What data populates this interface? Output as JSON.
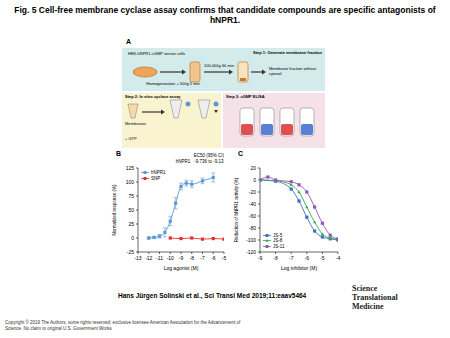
{
  "title": "Fig. 5 Cell-free membrane cyclase assay confirms that candidate compounds are specific antagonists of hNPR1.",
  "panel_a": {
    "label": "A",
    "step1": {
      "title": "Step 1: Generate membrane fraction",
      "cells": "HEK-hNPR1-cGMP sensor cells",
      "spin1": "Homogenization + 500g 5 min",
      "spin2": "100,000g 60 min",
      "product": "Membrane fraction without cytosol"
    },
    "step2": {
      "title": "Step 2: In vitro cyclase assay",
      "membranes": "Membranes",
      "gtp": "+ GTP"
    },
    "step3": {
      "title": "Step 3: cGMP ELISA"
    }
  },
  "chart_data": [
    {
      "panel": "B",
      "type": "line",
      "x_label": "Log agonist (M)",
      "y_label": "Normalized response (%)",
      "xlim": [
        -13,
        -5
      ],
      "xticks": [
        -13,
        -12,
        -11,
        -10,
        -9,
        -8,
        -7,
        -6,
        -5
      ],
      "ylim": [
        -25,
        125
      ],
      "yticks": [
        -25,
        0,
        25,
        50,
        75,
        100,
        125
      ],
      "grid": false,
      "legend": "upper left",
      "annotation_title": "EC50 (95% CI)",
      "annotation_rows": [
        [
          "hNPR1",
          "-9.736 to -9.13"
        ]
      ],
      "series": [
        {
          "name": "hNPR1",
          "color": "#5b9bd5",
          "marker": "square",
          "line_style": "solid",
          "x": [
            -12,
            -11.5,
            -11,
            -10.5,
            -10,
            -9.5,
            -9,
            -8.5,
            -8,
            -7,
            -6
          ],
          "values": [
            0,
            1,
            3,
            10,
            30,
            62,
            92,
            98,
            96,
            102,
            108
          ],
          "errors": [
            2,
            2,
            3,
            8,
            8,
            10,
            6,
            5,
            6,
            5,
            8
          ]
        },
        {
          "name": "SNP",
          "color": "#e0322d",
          "marker": "square",
          "line_style": "solid",
          "x": [
            -10,
            -9,
            -8,
            -7,
            -6,
            -5
          ],
          "values": [
            0,
            -1,
            0,
            -2,
            -1,
            -2
          ]
        }
      ]
    },
    {
      "panel": "C",
      "type": "line",
      "x_label": "Log inhibitor (M)",
      "y_label": "Reduction of hNPR1 activity (%)",
      "xlim": [
        -9,
        -4
      ],
      "xticks": [
        -9,
        -8,
        -7,
        -6,
        -5,
        -4
      ],
      "ylim": [
        -120,
        20
      ],
      "yticks": [
        20,
        0,
        -20,
        -40,
        -60,
        -80,
        -100,
        -120
      ],
      "grid": false,
      "legend": "lower left",
      "series": [
        {
          "name": "JS-5",
          "color": "#3a6fc4",
          "marker": "square",
          "line_style": "solid",
          "x": [
            -9,
            -8,
            -7,
            -6.5,
            -6,
            -5.5,
            -5,
            -4.5,
            -4
          ],
          "values": [
            0,
            -2,
            -15,
            -35,
            -62,
            -85,
            -95,
            -98,
            -100
          ]
        },
        {
          "name": "JS-8",
          "color": "#3da34a",
          "marker": "triangle",
          "line_style": "solid",
          "x": [
            -9,
            -8,
            -7,
            -6.5,
            -6,
            -5.5,
            -5,
            -4.5,
            -4
          ],
          "values": [
            0,
            -1,
            -8,
            -20,
            -45,
            -70,
            -90,
            -97,
            -99
          ]
        },
        {
          "name": "JS-11",
          "color": "#8e5bb5",
          "marker": "square",
          "line_style": "solid",
          "x": [
            -9,
            -8.5,
            -8,
            -7,
            -6.5,
            -6,
            -5.5,
            -5,
            -4.5,
            -4
          ],
          "values": [
            0,
            5,
            0,
            -3,
            -8,
            -20,
            -45,
            -72,
            -92,
            -98
          ]
        }
      ]
    }
  ],
  "citation": "Hans Jürgen Solinski et al., Sci Transl Med 2019;11:eaav5464",
  "logo": "Science Translational Medicine",
  "copyright": "Copyright © 2019 The Authors, some rights reserved; exclusive licensee American Association for the Advancement of Science. No claim to original U.S. Government Works"
}
